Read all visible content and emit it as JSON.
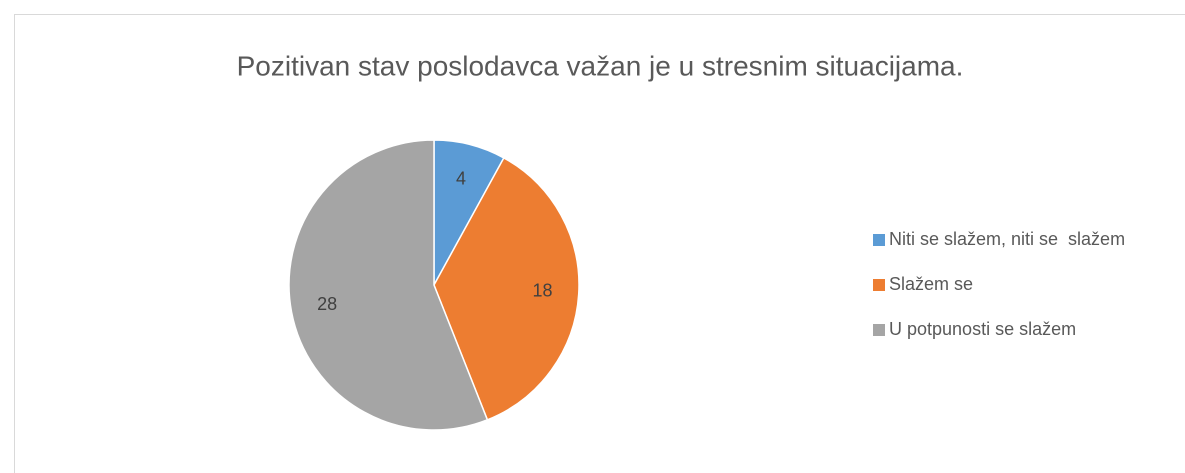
{
  "chart_data": {
    "type": "pie",
    "title": "Pozitivan stav poslodavca važan je u stresnim situacijama.",
    "categories": [
      "Niti se slažem, niti se  slažem",
      "Slažem se",
      "U potpunosti se slažem"
    ],
    "values": [
      4,
      18,
      28
    ],
    "colors": [
      "#5b9bd5",
      "#ed7d31",
      "#a5a5a5"
    ],
    "legend": "right"
  }
}
